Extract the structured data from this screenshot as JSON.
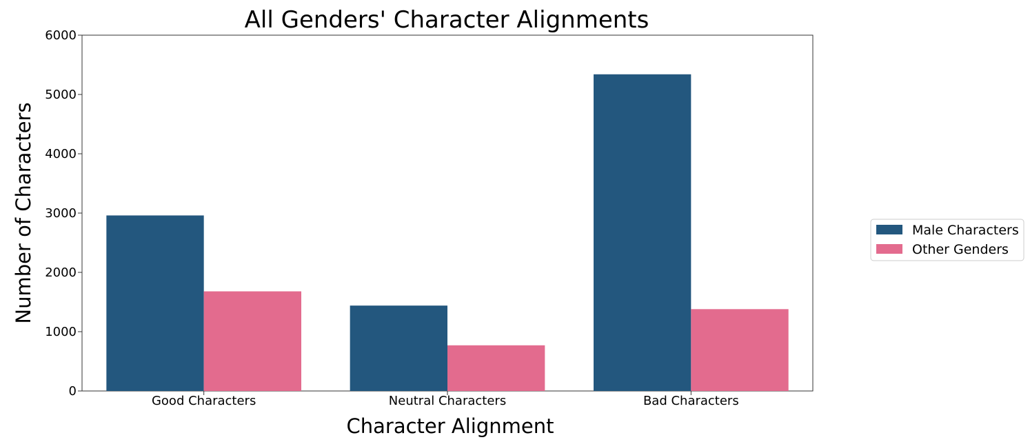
{
  "chart_data": {
    "type": "bar",
    "title": "All Genders' Character Alignments",
    "xlabel": "Character Alignment",
    "ylabel": "Number of Characters",
    "categories": [
      "Good Characters",
      "Neutral Characters",
      "Bad Characters"
    ],
    "series": [
      {
        "name": "Male Characters",
        "values": [
          2960,
          1440,
          5340
        ],
        "color": "#23577e"
      },
      {
        "name": "Other Genders",
        "values": [
          1680,
          770,
          1380
        ],
        "color": "#e36b8e"
      }
    ],
    "ylim": [
      0,
      6000
    ],
    "yticks": [
      0,
      1000,
      2000,
      3000,
      4000,
      5000,
      6000
    ],
    "grid": false,
    "legend_position": "right"
  }
}
